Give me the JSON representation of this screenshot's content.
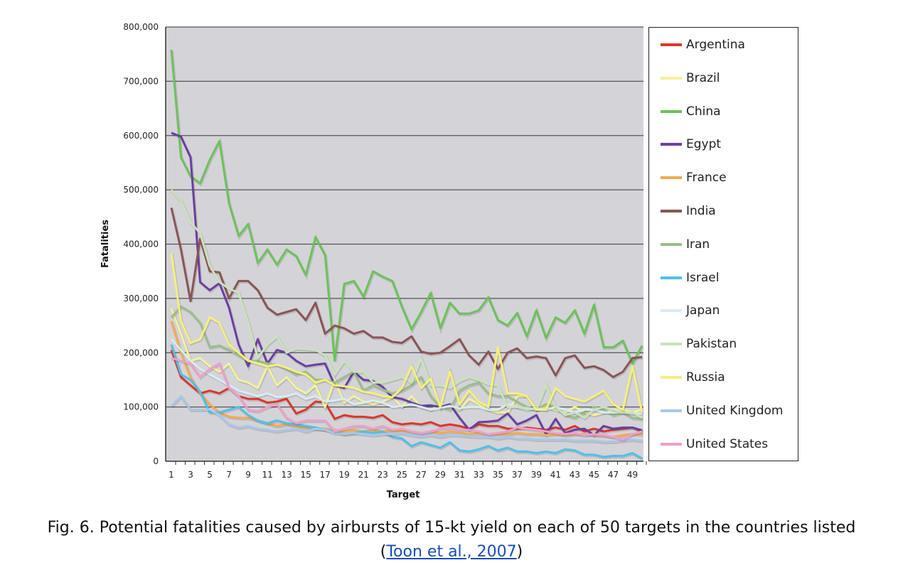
{
  "chart_data": {
    "type": "line",
    "title": "",
    "xlabel": "Target",
    "ylabel": "Fatalities",
    "ylim": [
      0,
      800000
    ],
    "xlim": [
      1,
      50
    ],
    "yticks": [
      "0",
      "100,000",
      "200,000",
      "300,000",
      "400,000",
      "500,000",
      "600,000",
      "700,000",
      "800,000"
    ],
    "xtick_labels": [
      "1",
      "3",
      "5",
      "7",
      "9",
      "11",
      "13",
      "15",
      "17",
      "19",
      "21",
      "23",
      "25",
      "27",
      "29",
      "31",
      "33",
      "35",
      "37",
      "39",
      "41",
      "43",
      "45",
      "47",
      "49"
    ],
    "grid": true,
    "legend_position": "right",
    "series": [
      {
        "name": "Argentina",
        "color": "#d9382c",
        "values": [
          205,
          155,
          140,
          125,
          130,
          125,
          135,
          120,
          115,
          115,
          108,
          110,
          115,
          88,
          95,
          110,
          108,
          78,
          85,
          82,
          82,
          80,
          85,
          72,
          68,
          70,
          68,
          72,
          65,
          68,
          65,
          60,
          68,
          65,
          65,
          60,
          60,
          62,
          60,
          58,
          62,
          58,
          65,
          55,
          60,
          55,
          58,
          60,
          62,
          55
        ]
      },
      {
        "name": "Brazil",
        "color": "#f3f29a",
        "values": [
          282,
          235,
          185,
          190,
          175,
          165,
          180,
          150,
          145,
          135,
          175,
          140,
          155,
          135,
          125,
          140,
          100,
          150,
          108,
          120,
          110,
          105,
          110,
          118,
          100,
          120,
          100,
          95,
          105,
          100,
          95,
          115,
          105,
          95,
          90,
          90,
          120,
          120,
          95,
          100,
          95,
          90,
          100,
          90,
          85,
          90,
          95,
          95,
          90,
          95
        ]
      },
      {
        "name": "China",
        "color": "#6cc25a",
        "values": [
          758,
          560,
          525,
          512,
          555,
          590,
          475,
          415,
          437,
          365,
          390,
          362,
          390,
          378,
          343,
          413,
          380,
          185,
          327,
          332,
          303,
          350,
          340,
          332,
          285,
          243,
          275,
          310,
          245,
          292,
          272,
          272,
          278,
          302,
          260,
          250,
          273,
          230,
          278,
          227,
          265,
          255,
          278,
          235,
          288,
          210,
          210,
          222,
          180,
          213
        ]
      },
      {
        "name": "Egypt",
        "color": "#6a3fa0",
        "values": [
          605,
          598,
          560,
          330,
          315,
          328,
          283,
          215,
          175,
          225,
          180,
          205,
          200,
          185,
          175,
          178,
          180,
          140,
          135,
          165,
          150,
          148,
          137,
          118,
          115,
          108,
          102,
          103,
          100,
          105,
          80,
          58,
          72,
          73,
          75,
          88,
          68,
          75,
          85,
          50,
          78,
          52,
          58,
          60,
          48,
          65,
          60,
          62,
          62,
          57
        ]
      },
      {
        "name": "France",
        "color": "#f4aa50",
        "values": [
          258,
          200,
          155,
          125,
          105,
          90,
          82,
          80,
          80,
          75,
          70,
          65,
          68,
          65,
          62,
          60,
          60,
          58,
          55,
          58,
          55,
          58,
          55,
          57,
          55,
          55,
          52,
          55,
          52,
          55,
          52,
          50,
          52,
          50,
          50,
          50,
          52,
          50,
          50,
          48,
          50,
          48,
          50,
          50,
          48,
          48,
          45,
          48,
          50,
          50
        ]
      },
      {
        "name": "India",
        "color": "#8a5455",
        "values": [
          467,
          390,
          295,
          410,
          350,
          348,
          300,
          332,
          332,
          315,
          283,
          270,
          275,
          280,
          260,
          292,
          235,
          250,
          245,
          235,
          240,
          228,
          228,
          220,
          218,
          230,
          202,
          198,
          200,
          212,
          225,
          195,
          178,
          202,
          170,
          200,
          208,
          190,
          193,
          190,
          158,
          190,
          195,
          172,
          175,
          168,
          155,
          165,
          190,
          192
        ]
      },
      {
        "name": "Iran",
        "color": "#9cbd8a",
        "values": [
          265,
          285,
          275,
          255,
          210,
          213,
          205,
          195,
          185,
          185,
          180,
          178,
          170,
          160,
          165,
          150,
          150,
          145,
          155,
          165,
          130,
          140,
          132,
          125,
          130,
          140,
          155,
          120,
          100,
          95,
          130,
          140,
          145,
          125,
          120,
          120,
          110,
          100,
          95,
          105,
          100,
          85,
          80,
          90,
          100,
          95,
          85,
          90,
          80,
          78
        ]
      },
      {
        "name": "Israel",
        "color": "#4fc0e8",
        "values": [
          215,
          160,
          150,
          128,
          90,
          90,
          95,
          100,
          85,
          75,
          70,
          75,
          70,
          68,
          65,
          62,
          58,
          55,
          50,
          52,
          55,
          52,
          55,
          45,
          42,
          28,
          35,
          30,
          25,
          35,
          20,
          18,
          22,
          28,
          20,
          25,
          18,
          18,
          15,
          18,
          15,
          22,
          20,
          12,
          12,
          8,
          10,
          10,
          15,
          5
        ]
      },
      {
        "name": "Japan",
        "color": "#d8ecf2",
        "values": [
          225,
          205,
          185,
          170,
          160,
          150,
          140,
          130,
          125,
          120,
          125,
          118,
          120,
          125,
          115,
          120,
          110,
          112,
          115,
          105,
          108,
          112,
          108,
          100,
          102,
          105,
          100,
          95,
          98,
          102,
          98,
          100,
          100,
          95,
          95,
          105,
          100,
          95,
          98,
          95,
          100,
          95,
          90,
          95,
          95,
          90,
          90,
          90,
          88,
          88
        ]
      },
      {
        "name": "Pakistan",
        "color": "#c9e3bc",
        "values": [
          500,
          480,
          440,
          420,
          360,
          330,
          318,
          310,
          255,
          190,
          215,
          230,
          200,
          208,
          207,
          205,
          195,
          160,
          185,
          165,
          165,
          145,
          145,
          150,
          155,
          145,
          190,
          140,
          140,
          135,
          148,
          155,
          150,
          142,
          140,
          100,
          100,
          98,
          95,
          140,
          100,
          85,
          90,
          80,
          95,
          100,
          95,
          90,
          90,
          80
        ]
      },
      {
        "name": "Russia",
        "color": "#f4f07c",
        "values": [
          383,
          258,
          218,
          225,
          265,
          255,
          215,
          200,
          185,
          180,
          175,
          178,
          172,
          165,
          160,
          145,
          150,
          140,
          138,
          135,
          128,
          125,
          120,
          118,
          135,
          175,
          135,
          152,
          100,
          165,
          105,
          130,
          110,
          100,
          210,
          125,
          125,
          120,
          95,
          95,
          135,
          120,
          115,
          110,
          120,
          130,
          105,
          95,
          175,
          90
        ]
      },
      {
        "name": "United Kingdom",
        "color": "#a9c7e8",
        "values": [
          102,
          120,
          95,
          95,
          95,
          85,
          68,
          62,
          65,
          60,
          58,
          55,
          58,
          60,
          55,
          60,
          58,
          52,
          50,
          52,
          50,
          48,
          50,
          50,
          52,
          48,
          46,
          48,
          45,
          48,
          48,
          46,
          45,
          45,
          42,
          45,
          42,
          42,
          40,
          40,
          40,
          40,
          38,
          38,
          38,
          36,
          36,
          38,
          40,
          38
        ]
      },
      {
        "name": "United States",
        "color": "#ef9fca",
        "values": [
          190,
          185,
          180,
          155,
          170,
          180,
          135,
          120,
          95,
          92,
          100,
          105,
          80,
          70,
          75,
          75,
          75,
          55,
          60,
          65,
          65,
          60,
          65,
          58,
          60,
          55,
          52,
          55,
          60,
          62,
          58,
          58,
          55,
          50,
          52,
          55,
          62,
          60,
          58,
          55,
          52,
          50,
          52,
          48,
          50,
          48,
          45,
          40,
          50,
          55
        ]
      }
    ],
    "value_unit": "thousands"
  },
  "caption": {
    "text": "Fig. 6. Potential fatalities caused by airbursts of 15-kt yield on each of 50 targets in the countries listed",
    "link_open": "(",
    "link_text": "Toon et al., 2007",
    "link_close": ")"
  }
}
